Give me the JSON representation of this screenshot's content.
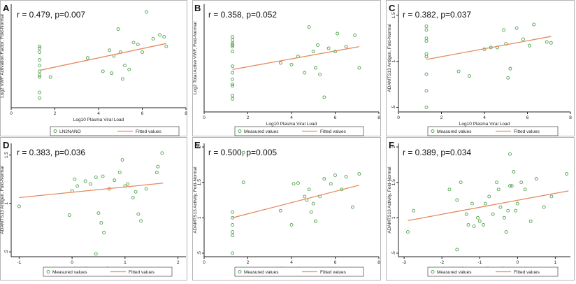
{
  "chart_data": [
    {
      "panel": "A",
      "type": "scatter",
      "annotation": "r = 0.479, p=0.007",
      "xlabel": "Log10 Plasma Viral Load",
      "ylabel": "Log2 VWF Activation Factor, Fold-Normal",
      "xlim": [
        0,
        8
      ],
      "ylim": [
        -3.2,
        2.2
      ],
      "xticks": [
        0,
        2,
        4,
        6,
        8
      ],
      "xtick_labels": [
        "0",
        "2",
        "4",
        "6",
        "8"
      ],
      "yticks": [],
      "ytick_labels": [],
      "legend": [
        "LN2NANO",
        "Fitted values"
      ],
      "series": [
        {
          "name": "LN2NANO",
          "x": [
            1.3,
            1.3,
            1.3,
            1.3,
            1.3,
            1.3,
            1.3,
            1.3,
            1.3,
            1.3,
            1.8,
            3.5,
            4.2,
            4.5,
            4.6,
            4.7,
            4.9,
            5.0,
            5.1,
            5.2,
            5.4,
            5.6,
            5.8,
            6.0,
            6.2,
            6.5,
            6.8,
            7.0,
            7.1
          ],
          "y": [
            -0.1,
            -0.3,
            -0.7,
            -1.0,
            -1.3,
            -1.5,
            -1.6,
            -2.4,
            -2.7,
            0.0,
            -1.6,
            -0.6,
            -1.3,
            -0.2,
            -1.4,
            -0.5,
            0.9,
            -0.3,
            -1.7,
            -1.0,
            -1.2,
            0.2,
            0.1,
            -0.3,
            1.8,
            0.4,
            0.6,
            0.5,
            0.0
          ]
        }
      ],
      "fit": {
        "name": "Fitted values",
        "x": [
          1.3,
          7.1
        ],
        "y": [
          -1.25,
          0.15
        ]
      },
      "colors": {
        "points": "#4ea24e",
        "fit": "#e58a5c"
      }
    },
    {
      "panel": "B",
      "type": "scatter",
      "annotation": "r = 0.358, p=0.052",
      "xlabel": "Log10 Plasma Viral Load",
      "ylabel": "Log2 Total Active VWF, Fold-Normal",
      "xlim": [
        0,
        8
      ],
      "ylim": [
        -3.2,
        3.4
      ],
      "xticks": [
        0,
        2,
        4,
        6,
        8
      ],
      "xtick_labels": [
        "0",
        "2",
        "4",
        "6",
        "8"
      ],
      "yticks": [],
      "ytick_labels": [],
      "legend": [
        "Measured values",
        "Fitted values"
      ],
      "series": [
        {
          "name": "Measured values",
          "x": [
            1.3,
            1.3,
            1.3,
            1.3,
            1.3,
            1.3,
            1.3,
            1.3,
            1.3,
            1.3,
            1.3,
            1.3,
            1.3,
            3.5,
            4.0,
            4.3,
            4.6,
            4.8,
            5.0,
            5.1,
            5.2,
            5.3,
            5.5,
            5.7,
            6.0,
            6.1,
            6.5,
            6.9,
            7.1
          ],
          "y": [
            1.4,
            1.2,
            1.0,
            0.9,
            0.8,
            0.5,
            -0.4,
            -0.8,
            -1.2,
            -1.5,
            -1.6,
            -2.2,
            -2.4,
            -0.2,
            -0.3,
            0.2,
            -0.8,
            2.0,
            0.5,
            -0.5,
            0.9,
            -0.9,
            -2.3,
            0.7,
            0.5,
            1.6,
            0.8,
            1.5,
            -0.5
          ]
        }
      ],
      "fit": {
        "name": "Fitted values",
        "x": [
          1.3,
          7.1
        ],
        "y": [
          -0.6,
          0.8
        ]
      },
      "colors": {
        "points": "#4ea24e",
        "fit": "#e58a5c"
      }
    },
    {
      "panel": "C",
      "type": "scatter",
      "annotation": "r = 0.382, p=0.037",
      "xlabel": "Log10 Plasma Viral Load",
      "ylabel": "ADAMTS13 Antigen, Fold-Normal",
      "xlim": [
        0,
        8
      ],
      "ylim": [
        0.45,
        1.62
      ],
      "xticks": [
        0,
        2,
        4,
        6,
        8
      ],
      "xtick_labels": [
        "0",
        "2",
        "4",
        "6",
        "8"
      ],
      "yticks": [
        0.5,
        1,
        1.5
      ],
      "ytick_labels": [
        ".5",
        "1",
        "1.5"
      ],
      "legend": [
        "Measured values",
        "Fitted values"
      ],
      "series": [
        {
          "name": "Measured values",
          "x": [
            1.3,
            1.3,
            1.3,
            1.3,
            1.3,
            1.3,
            1.3,
            1.3,
            1.3,
            2.8,
            3.3,
            4.0,
            4.3,
            4.6,
            4.9,
            5.0,
            5.1,
            5.2,
            5.5,
            5.8,
            6.1,
            6.3,
            6.9,
            7.1
          ],
          "y": [
            1.38,
            1.34,
            1.25,
            1.22,
            1.08,
            1.05,
            0.86,
            0.68,
            0.5,
            0.89,
            0.84,
            1.13,
            1.15,
            1.15,
            1.34,
            1.19,
            0.82,
            0.92,
            1.36,
            1.24,
            1.17,
            1.4,
            1.21,
            1.2
          ]
        }
      ],
      "fit": {
        "name": "Fitted values",
        "x": [
          1.3,
          7.1
        ],
        "y": [
          1.02,
          1.27
        ]
      },
      "colors": {
        "points": "#4ea24e",
        "fit": "#e58a5c"
      }
    },
    {
      "panel": "D",
      "type": "scatter",
      "annotation": "r = 0.383, p=0.036",
      "xlabel": "Log2 VWF Antigen, Fold-Normal",
      "ylabel": "ADAMTS13 Antigen, Fold-Normal",
      "xlim": [
        -1.15,
        2.15
      ],
      "ylim": [
        0.45,
        1.62
      ],
      "xticks": [
        -1,
        0,
        1,
        2
      ],
      "xtick_labels": [
        "-1",
        "0",
        "1",
        "2"
      ],
      "yticks": [
        0.5,
        1,
        1.5
      ],
      "ytick_labels": [
        ".5",
        "1",
        "1.5"
      ],
      "legend": [
        "Measured values",
        "Fitted values"
      ],
      "series": [
        {
          "name": "Measured values",
          "x": [
            -1.0,
            -0.05,
            0.0,
            0.05,
            0.1,
            0.25,
            0.35,
            0.45,
            0.5,
            0.55,
            0.6,
            0.7,
            0.8,
            0.9,
            1.0,
            1.05,
            1.15,
            1.2,
            1.25,
            1.3,
            1.4,
            1.6,
            1.62,
            1.7,
            0.95,
            0.45,
            0.58
          ],
          "y": [
            0.97,
            0.88,
            1.13,
            1.25,
            1.18,
            1.23,
            1.2,
            1.27,
            0.9,
            0.8,
            0.7,
            1.15,
            1.24,
            1.32,
            1.18,
            1.2,
            1.06,
            1.12,
            0.89,
            0.82,
            1.15,
            1.32,
            1.38,
            1.52,
            1.45,
            0.48,
            1.28
          ]
        }
      ],
      "fit": {
        "name": "Fitted values",
        "x": [
          -1.0,
          1.72
        ],
        "y": [
          1.06,
          1.21
        ]
      },
      "colors": {
        "points": "#4ea24e",
        "fit": "#e58a5c"
      }
    },
    {
      "panel": "E",
      "type": "scatter",
      "annotation": "r = 0.500, p=0.005",
      "xlabel": "Log10 Plasma Viral Load",
      "ylabel": "ADAMTS13 Activity, Fold-Normal",
      "xlim": [
        0,
        8
      ],
      "ylim": [
        0.45,
        2.05
      ],
      "xticks": [
        0,
        2,
        4,
        6,
        8
      ],
      "xtick_labels": [
        "0",
        "2",
        "4",
        "6",
        "8"
      ],
      "yticks": [
        0.5,
        1,
        1.5,
        2
      ],
      "ytick_labels": [
        ".5",
        "1",
        "1.5",
        "2"
      ],
      "legend": [
        "Measured values",
        "Fitted values"
      ],
      "series": [
        {
          "name": "Measured values",
          "x": [
            1.3,
            1.3,
            1.3,
            1.3,
            1.3,
            1.3,
            1.8,
            3.5,
            4.0,
            4.1,
            4.3,
            4.6,
            4.7,
            4.8,
            4.9,
            5.0,
            5.1,
            5.3,
            5.5,
            5.8,
            6.0,
            6.3,
            6.5,
            6.8,
            7.1,
            1.8
          ],
          "y": [
            1.08,
            1.0,
            0.9,
            0.8,
            0.5,
            0.75,
            1.5,
            1.1,
            0.9,
            1.48,
            1.49,
            1.3,
            1.25,
            1.4,
            1.08,
            1.2,
            0.95,
            1.3,
            1.55,
            1.48,
            1.6,
            1.4,
            1.58,
            1.15,
            1.62,
            1.92
          ]
        }
      ],
      "fit": {
        "name": "Fitted values",
        "x": [
          1.3,
          7.1
        ],
        "y": [
          1.0,
          1.46
        ]
      },
      "colors": {
        "points": "#4ea24e",
        "fit": "#e58a5c"
      }
    },
    {
      "panel": "F",
      "type": "scatter",
      "annotation": "r = 0.389, p=0.034",
      "xlabel": "Log2 VWF Activation Factor, Fold-Normal",
      "ylabel": "ADAMTS13 Activity, Fold-Normal",
      "xlim": [
        -3.15,
        1.4
      ],
      "ylim": [
        0.45,
        2.05
      ],
      "xticks": [
        -3,
        -2,
        -1,
        0,
        1
      ],
      "xtick_labels": [
        "-3",
        "-2",
        "-1",
        "0",
        "1"
      ],
      "yticks": [
        0.5,
        1,
        1.5,
        2
      ],
      "ytick_labels": [
        ".5",
        "1",
        "1.5",
        "2"
      ],
      "legend": [
        "Measured values",
        "Fitted values"
      ],
      "series": [
        {
          "name": "Measured values",
          "x": [
            -2.9,
            -2.75,
            -1.8,
            -1.6,
            -1.5,
            -1.35,
            -1.3,
            -1.2,
            -1.15,
            -1.05,
            -1.0,
            -0.9,
            -0.85,
            -0.75,
            -0.65,
            -0.55,
            -0.5,
            -0.45,
            -0.35,
            -0.3,
            -0.25,
            -0.2,
            -0.15,
            -0.1,
            -0.05,
            0.0,
            0.1,
            0.2,
            0.35,
            0.5,
            0.7,
            0.9,
            1.3,
            -1.6,
            -0.2
          ],
          "y": [
            0.8,
            1.1,
            1.4,
            0.55,
            1.5,
            1.05,
            0.9,
            1.2,
            0.88,
            1.0,
            0.95,
            0.9,
            1.2,
            1.3,
            1.05,
            1.5,
            1.4,
            1.15,
            1.0,
            0.8,
            1.1,
            1.45,
            1.45,
            1.65,
            1.1,
            1.2,
            1.5,
            1.4,
            0.95,
            1.55,
            1.15,
            1.3,
            1.62,
            1.25,
            1.9
          ]
        }
      ],
      "fit": {
        "name": "Fitted values",
        "x": [
          -2.9,
          1.35
        ],
        "y": [
          0.96,
          1.38
        ]
      },
      "colors": {
        "points": "#4ea24e",
        "fit": "#e58a5c"
      }
    }
  ]
}
